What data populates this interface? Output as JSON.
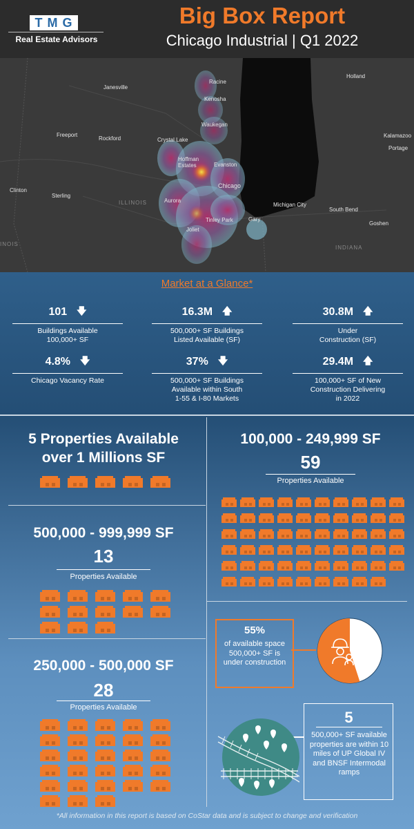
{
  "header": {
    "logo_letters": [
      "T",
      "M",
      "G"
    ],
    "logo_subtitle": "Real Estate Advisors",
    "title": "Big Box Report",
    "subtitle": "Chicago Industrial | Q1 2022"
  },
  "map": {
    "labels": [
      "Racine",
      "Kenosha",
      "Waukegan",
      "Janesville",
      "Freeport",
      "Rockford",
      "Crystal Lake",
      "Hoffman Estates",
      "Evanston",
      "Chicago",
      "Aurora",
      "Joliet",
      "Tinley Park",
      "Gary",
      "Michigan City",
      "South Bend",
      "Goshen",
      "Holland",
      "Kalamazoo",
      "Portage",
      "Clinton",
      "Sterling",
      "ILLINOIS",
      "INDIANA",
      "INOIS"
    ],
    "colors": {
      "land": "#3a3a3a",
      "lake": "#0c0c0c",
      "heat_low": "#7fb3c6",
      "heat_mid": "#b0306a",
      "heat_high": "#f5e04a"
    }
  },
  "glance": {
    "title": "Market at a Glance*",
    "stats": [
      {
        "value": "101",
        "trend": "down",
        "label": "Buildings Available\n100,000+ SF"
      },
      {
        "value": "16.3M",
        "trend": "up",
        "label": "500,000+ SF Buildings\nListed Available (SF)"
      },
      {
        "value": "30.8M",
        "trend": "up",
        "label": "Under\nConstruction (SF)"
      },
      {
        "value": "4.8%",
        "trend": "down",
        "label": "Chicago Vacancy Rate"
      },
      {
        "value": "37%",
        "trend": "down",
        "label": "500,000+ SF Buildings\nAvailable within South\n1-55 & I-80 Markets"
      },
      {
        "value": "29.4M",
        "trend": "up",
        "label": "100,000+ SF of New\nConstruction Delivering\nin 2022"
      }
    ],
    "arrows": {
      "up": "🡅",
      "down": "🡇"
    }
  },
  "sections": {
    "over_1m": {
      "heading_line1": "5 Properties Available",
      "heading_line2": "over 1 Millions SF",
      "count": 5
    },
    "s100k": {
      "heading": "100,000 - 249,999 SF",
      "number": "59",
      "label": "Properties Available",
      "count": 59
    },
    "s500k": {
      "heading": "500,000 - 999,999 SF",
      "number": "13",
      "label": "Properties Available",
      "count": 13
    },
    "s250k": {
      "heading": "250,000 - 500,000 SF",
      "number": "28",
      "label": "Properties Available",
      "count": 28
    }
  },
  "construction": {
    "percent": "55%",
    "text": "of available space 500,000+ SF is under construction",
    "pie_fraction": 0.55,
    "colors": {
      "fill": "#f07a2a",
      "rest": "#ffffff"
    }
  },
  "intermodal": {
    "number": "5",
    "text": "500,000+ SF available properties are within 10 miles of UP Global IV and BNSF Intermodal ramps"
  },
  "footnote": "*All information in this report is based on CoStar data and is subject to change and verification",
  "colors": {
    "accent": "#f07a2a",
    "header_bg": "#2c2c2c",
    "panel_top": "#244e75",
    "panel_bottom": "#6b9cc8"
  }
}
